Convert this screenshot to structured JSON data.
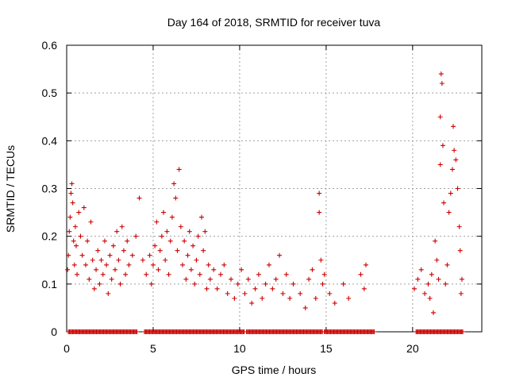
{
  "chart_data": {
    "type": "scatter",
    "title": "Day 164 of 2018, SRMTID for receiver tuva",
    "xlabel": "GPS time / hours",
    "ylabel": "SRMTID / TECUs",
    "xlim": [
      0,
      24
    ],
    "ylim": [
      0,
      0.6
    ],
    "xticks": [
      0,
      5,
      10,
      15,
      20
    ],
    "xtick_labels": [
      "0",
      "5",
      "10",
      "15",
      "20"
    ],
    "yticks": [
      0,
      0.1,
      0.2,
      0.3,
      0.4,
      0.5,
      0.6
    ],
    "ytick_labels": [
      "0",
      "0.1",
      "0.2",
      "0.3",
      "0.4",
      "0.5",
      "0.6"
    ],
    "grid": true,
    "marker": "+",
    "color": "#cc0000",
    "series": [
      {
        "name": "SRMTID",
        "points": [
          [
            0.05,
            0.13
          ],
          [
            0.1,
            0.16
          ],
          [
            0.15,
            0.21
          ],
          [
            0.2,
            0.24
          ],
          [
            0.25,
            0.29
          ],
          [
            0.3,
            0.31
          ],
          [
            0.35,
            0.27
          ],
          [
            0.4,
            0.19
          ],
          [
            0.45,
            0.14
          ],
          [
            0.5,
            0.22
          ],
          [
            0.55,
            0.18
          ],
          [
            0.6,
            0.12
          ],
          [
            0.7,
            0.25
          ],
          [
            0.8,
            0.2
          ],
          [
            0.9,
            0.16
          ],
          [
            1.0,
            0.26
          ],
          [
            1.1,
            0.14
          ],
          [
            1.2,
            0.19
          ],
          [
            1.3,
            0.11
          ],
          [
            1.4,
            0.23
          ],
          [
            1.5,
            0.15
          ],
          [
            1.6,
            0.09
          ],
          [
            1.7,
            0.13
          ],
          [
            1.8,
            0.17
          ],
          [
            1.9,
            0.1
          ],
          [
            2.0,
            0.15
          ],
          [
            2.1,
            0.12
          ],
          [
            2.2,
            0.19
          ],
          [
            2.3,
            0.14
          ],
          [
            2.4,
            0.08
          ],
          [
            2.5,
            0.16
          ],
          [
            2.6,
            0.11
          ],
          [
            2.7,
            0.18
          ],
          [
            2.8,
            0.13
          ],
          [
            2.9,
            0.21
          ],
          [
            3.0,
            0.15
          ],
          [
            3.1,
            0.1
          ],
          [
            3.2,
            0.22
          ],
          [
            3.3,
            0.17
          ],
          [
            3.4,
            0.12
          ],
          [
            3.5,
            0.19
          ],
          [
            3.6,
            0.14
          ],
          [
            3.8,
            0.16
          ],
          [
            4.0,
            0.2
          ],
          [
            4.2,
            0.28
          ],
          [
            4.4,
            0.15
          ],
          [
            4.6,
            0.12
          ],
          [
            4.8,
            0.16
          ],
          [
            4.9,
            0.1
          ],
          [
            5.0,
            0.14
          ],
          [
            5.1,
            0.18
          ],
          [
            5.2,
            0.23
          ],
          [
            5.3,
            0.13
          ],
          [
            5.4,
            0.17
          ],
          [
            5.5,
            0.2
          ],
          [
            5.6,
            0.25
          ],
          [
            5.7,
            0.15
          ],
          [
            5.8,
            0.21
          ],
          [
            5.9,
            0.12
          ],
          [
            6.0,
            0.19
          ],
          [
            6.1,
            0.24
          ],
          [
            6.2,
            0.31
          ],
          [
            6.3,
            0.28
          ],
          [
            6.4,
            0.17
          ],
          [
            6.5,
            0.34
          ],
          [
            6.6,
            0.22
          ],
          [
            6.7,
            0.14
          ],
          [
            6.8,
            0.19
          ],
          [
            6.9,
            0.11
          ],
          [
            7.0,
            0.16
          ],
          [
            7.1,
            0.21
          ],
          [
            7.2,
            0.13
          ],
          [
            7.3,
            0.18
          ],
          [
            7.4,
            0.1
          ],
          [
            7.5,
            0.15
          ],
          [
            7.6,
            0.2
          ],
          [
            7.7,
            0.12
          ],
          [
            7.8,
            0.24
          ],
          [
            7.9,
            0.17
          ],
          [
            8.0,
            0.21
          ],
          [
            8.1,
            0.09
          ],
          [
            8.2,
            0.14
          ],
          [
            8.3,
            0.11
          ],
          [
            8.5,
            0.13
          ],
          [
            8.7,
            0.09
          ],
          [
            8.9,
            0.12
          ],
          [
            9.1,
            0.14
          ],
          [
            9.3,
            0.08
          ],
          [
            9.5,
            0.11
          ],
          [
            9.7,
            0.07
          ],
          [
            9.9,
            0.1
          ],
          [
            10.1,
            0.13
          ],
          [
            10.3,
            0.08
          ],
          [
            10.5,
            0.11
          ],
          [
            10.7,
            0.06
          ],
          [
            10.9,
            0.09
          ],
          [
            11.1,
            0.12
          ],
          [
            11.3,
            0.07
          ],
          [
            11.5,
            0.1
          ],
          [
            11.7,
            0.14
          ],
          [
            11.9,
            0.09
          ],
          [
            12.1,
            0.11
          ],
          [
            12.3,
            0.16
          ],
          [
            12.5,
            0.08
          ],
          [
            12.7,
            0.12
          ],
          [
            12.9,
            0.07
          ],
          [
            13.1,
            0.1
          ],
          [
            13.5,
            0.08
          ],
          [
            13.8,
            0.05
          ],
          [
            14.0,
            0.11
          ],
          [
            14.2,
            0.13
          ],
          [
            14.4,
            0.07
          ],
          [
            14.6,
            0.29
          ],
          [
            14.6,
            0.25
          ],
          [
            14.7,
            0.15
          ],
          [
            14.8,
            0.1
          ],
          [
            14.9,
            0.12
          ],
          [
            15.2,
            0.08
          ],
          [
            15.5,
            0.06
          ],
          [
            16.0,
            0.1
          ],
          [
            16.3,
            0.07
          ],
          [
            17.0,
            0.12
          ],
          [
            17.2,
            0.09
          ],
          [
            17.3,
            0.14
          ],
          [
            20.1,
            0.09
          ],
          [
            20.3,
            0.11
          ],
          [
            20.5,
            0.13
          ],
          [
            20.7,
            0.08
          ],
          [
            20.9,
            0.1
          ],
          [
            21.0,
            0.07
          ],
          [
            21.1,
            0.12
          ],
          [
            21.2,
            0.04
          ],
          [
            21.3,
            0.19
          ],
          [
            21.4,
            0.15
          ],
          [
            21.5,
            0.11
          ],
          [
            21.6,
            0.35
          ],
          [
            21.6,
            0.45
          ],
          [
            21.65,
            0.54
          ],
          [
            21.7,
            0.52
          ],
          [
            21.75,
            0.39
          ],
          [
            21.8,
            0.27
          ],
          [
            21.9,
            0.1
          ],
          [
            22.0,
            0.14
          ],
          [
            22.1,
            0.25
          ],
          [
            22.2,
            0.29
          ],
          [
            22.3,
            0.34
          ],
          [
            22.35,
            0.43
          ],
          [
            22.4,
            0.38
          ],
          [
            22.5,
            0.36
          ],
          [
            22.6,
            0.3
          ],
          [
            22.7,
            0.22
          ],
          [
            22.75,
            0.17
          ],
          [
            22.8,
            0.08
          ],
          [
            22.85,
            0.11
          ]
        ]
      }
    ],
    "zero_baseline_segments": [
      [
        0.1,
        4.1
      ],
      [
        4.5,
        10.3
      ],
      [
        10.4,
        14.8
      ],
      [
        14.9,
        17.8
      ],
      [
        20.2,
        22.9
      ]
    ]
  }
}
